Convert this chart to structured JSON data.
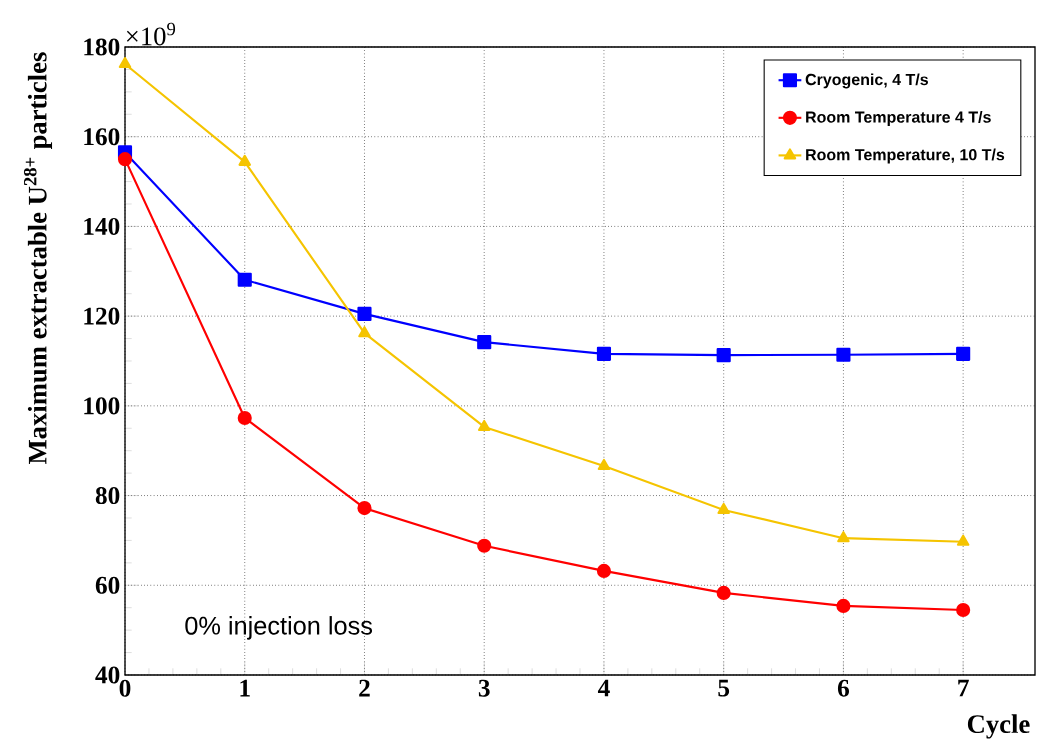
{
  "chart_data": {
    "type": "line",
    "xlabel": "Cycle",
    "ylabel": "Maximum extractable U$^{28+}$ particles",
    "annotations": [
      "×10$^{9}$",
      "0% injection loss"
    ],
    "x": [
      0,
      1,
      2,
      3,
      4,
      5,
      6,
      7
    ],
    "series": [
      {
        "name": "Cryogenic, 4 T/s",
        "color": "#0000ff",
        "marker": "square",
        "values": [
          156.5,
          128.1,
          120.5,
          114.2,
          111.6,
          111.3,
          111.4,
          111.6
        ]
      },
      {
        "name": "Room Temperature 4 T/s",
        "color": "#ff0000",
        "marker": "circle",
        "values": [
          155.0,
          97.3,
          77.2,
          68.8,
          63.2,
          58.3,
          55.4,
          54.5
        ]
      },
      {
        "name": "Room Temperature, 10 T/s",
        "color": "#f5c400",
        "marker": "triangle",
        "values": [
          176.2,
          154.4,
          116.2,
          95.3,
          86.6,
          76.8,
          70.5,
          69.7
        ]
      }
    ],
    "xlim": [
      0,
      7.6
    ],
    "ylim": [
      40,
      180
    ],
    "xticks": [
      0,
      1,
      2,
      3,
      4,
      5,
      6,
      7
    ],
    "yticks": [
      40,
      60,
      80,
      100,
      120,
      140,
      160,
      180
    ],
    "grid": true,
    "legend": "top right",
    "line_style": "solid"
  }
}
